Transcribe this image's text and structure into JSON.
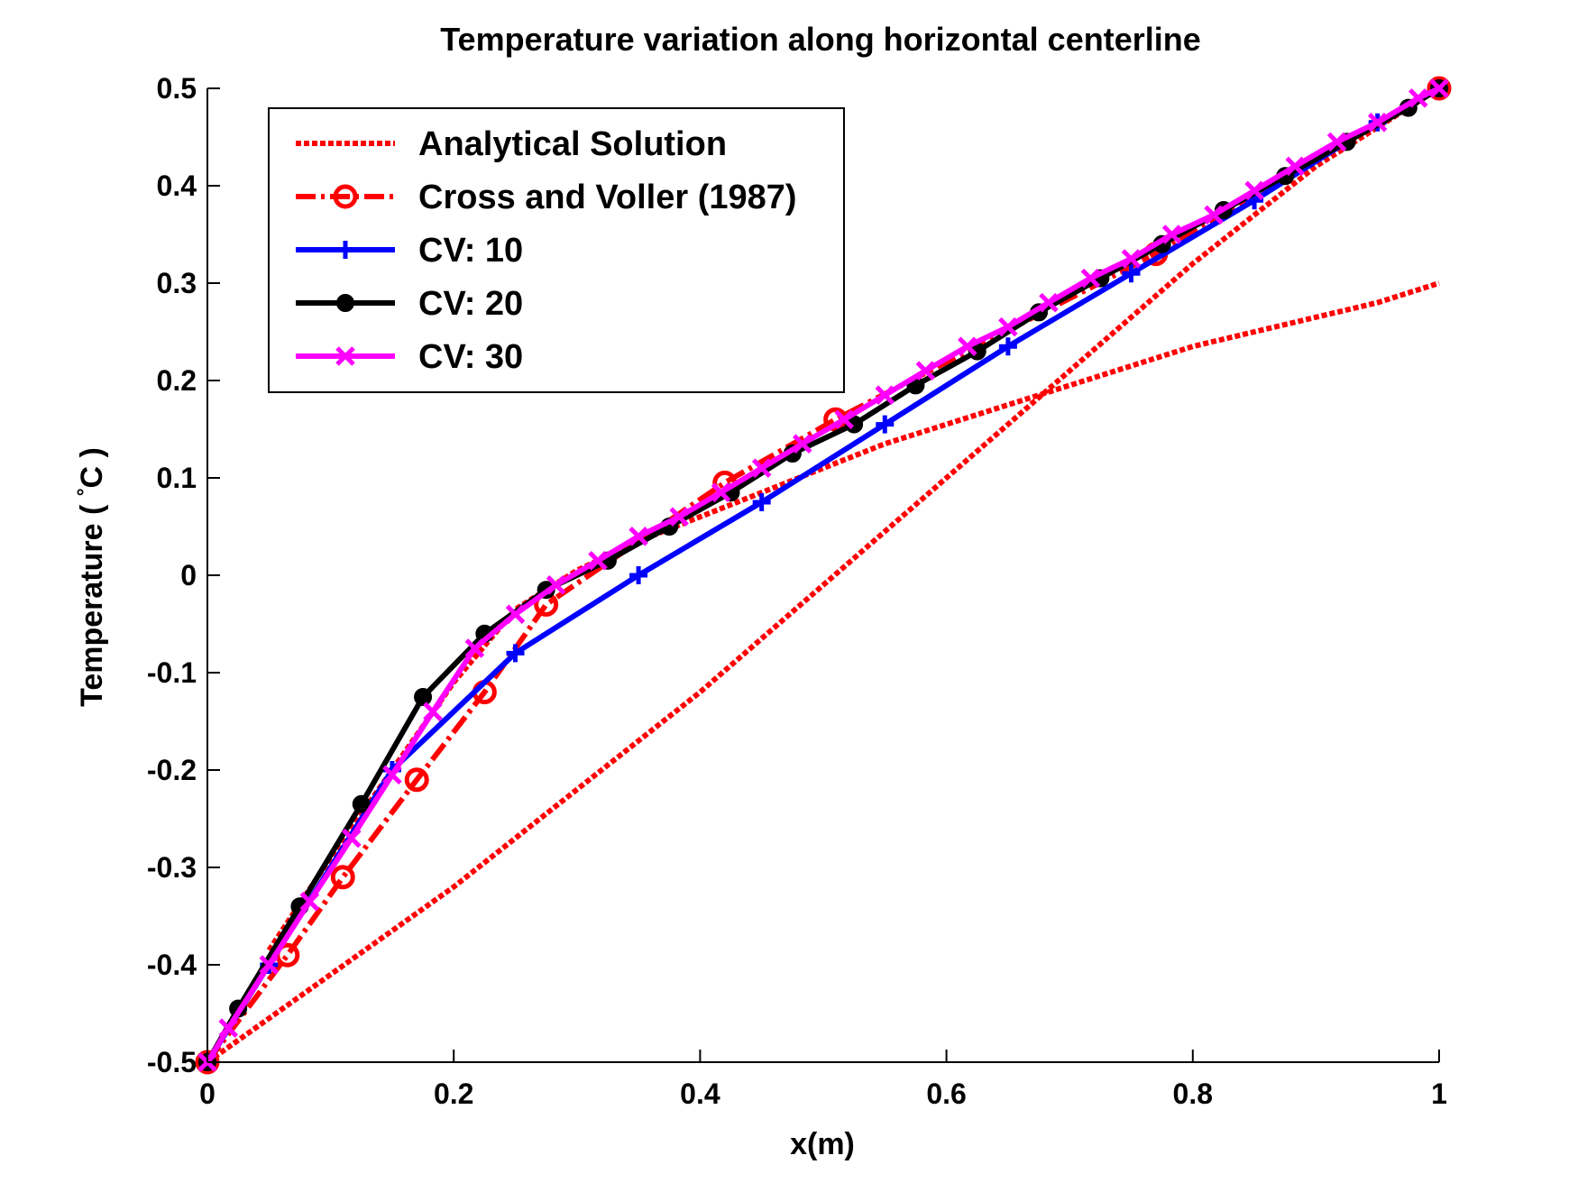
{
  "chart_data": {
    "type": "line",
    "title": "Temperature variation along horizontal centerline",
    "xlabel": "x(m)",
    "ylabel_main": "Temperature ( ",
    "ylabel_degree": "°",
    "ylabel_unit": "C )",
    "xlim": [
      0,
      1
    ],
    "ylim": [
      -0.5,
      0.5
    ],
    "xticks": [
      0,
      0.2,
      0.4,
      0.6,
      0.8,
      1
    ],
    "xtick_labels": [
      "0",
      "0.2",
      "0.4",
      "0.6",
      "0.8",
      "1"
    ],
    "yticks": [
      -0.5,
      -0.4,
      -0.3,
      -0.2,
      -0.1,
      0,
      0.1,
      0.2,
      0.3,
      0.4,
      0.5
    ],
    "ytick_labels": [
      "-0.5",
      "-0.4",
      "-0.3",
      "-0.2",
      "-0.1",
      "0",
      "0.1",
      "0.2",
      "0.3",
      "0.4",
      "0.5"
    ],
    "grid": false,
    "legend_position": "top-left",
    "series": [
      {
        "name": "Analytical Solution",
        "color": "#ff0000",
        "style": "dotted",
        "marker": "none",
        "x": [
          0.05,
          0.1,
          0.15,
          0.2,
          0.25,
          0.3,
          0.35,
          0.4,
          0.45,
          0.5,
          0.55,
          0.6,
          0.65,
          0.7,
          0.75,
          0.8,
          0.85,
          0.9,
          0.95,
          1.0
        ],
        "y": [
          -0.385,
          -0.29,
          -0.2,
          -0.11,
          -0.035,
          0.005,
          0.035,
          0.06,
          0.085,
          0.11,
          0.135,
          0.155,
          0.175,
          0.195,
          0.215,
          0.235,
          0.25,
          0.265,
          0.28,
          0.3
        ]
      },
      {
        "name": "Analytical Solution",
        "legend": false,
        "color": "#ff0000",
        "style": "dotted",
        "marker": "none",
        "x": [
          0,
          0.1,
          0.2,
          0.3,
          0.4,
          0.5,
          0.6,
          0.7,
          0.8,
          0.9,
          1.0
        ],
        "y": [
          -0.5,
          -0.41,
          -0.32,
          -0.22,
          -0.12,
          -0.01,
          0.1,
          0.21,
          0.32,
          0.42,
          0.5
        ]
      },
      {
        "name": "Cross and Voller (1987)",
        "color": "#ff0000",
        "style": "dashdot",
        "marker": "circle",
        "x": [
          0,
          0.065,
          0.11,
          0.17,
          0.225,
          0.275,
          0.42,
          0.51,
          0.77,
          1.0
        ],
        "y": [
          -0.5,
          -0.39,
          -0.31,
          -0.21,
          -0.12,
          -0.03,
          0.095,
          0.16,
          0.33,
          0.5
        ]
      },
      {
        "name": "CV: 10",
        "color": "#0000ff",
        "style": "solid",
        "marker": "plus",
        "x": [
          0,
          0.05,
          0.15,
          0.25,
          0.35,
          0.45,
          0.55,
          0.65,
          0.75,
          0.85,
          0.95,
          1.0
        ],
        "y": [
          -0.5,
          -0.4,
          -0.2,
          -0.08,
          0.0,
          0.075,
          0.155,
          0.235,
          0.31,
          0.385,
          0.465,
          0.5
        ]
      },
      {
        "name": "CV: 20",
        "color": "#000000",
        "style": "solid",
        "marker": "dot",
        "x": [
          0,
          0.025,
          0.075,
          0.125,
          0.175,
          0.225,
          0.275,
          0.325,
          0.375,
          0.425,
          0.475,
          0.525,
          0.575,
          0.625,
          0.675,
          0.725,
          0.775,
          0.825,
          0.875,
          0.925,
          0.975,
          1.0
        ],
        "y": [
          -0.5,
          -0.445,
          -0.34,
          -0.235,
          -0.125,
          -0.06,
          -0.015,
          0.015,
          0.05,
          0.085,
          0.125,
          0.155,
          0.195,
          0.23,
          0.27,
          0.305,
          0.34,
          0.375,
          0.41,
          0.445,
          0.48,
          0.5
        ]
      },
      {
        "name": "CV: 30",
        "color": "#ff00ff",
        "style": "solid",
        "marker": "x",
        "x": [
          0,
          0.017,
          0.05,
          0.083,
          0.117,
          0.15,
          0.183,
          0.217,
          0.25,
          0.283,
          0.317,
          0.35,
          0.383,
          0.417,
          0.45,
          0.483,
          0.517,
          0.55,
          0.583,
          0.617,
          0.65,
          0.683,
          0.717,
          0.75,
          0.783,
          0.817,
          0.85,
          0.883,
          0.917,
          0.95,
          0.983,
          1.0
        ],
        "y": [
          -0.5,
          -0.465,
          -0.4,
          -0.335,
          -0.27,
          -0.205,
          -0.14,
          -0.075,
          -0.04,
          -0.01,
          0.015,
          0.04,
          0.06,
          0.085,
          0.11,
          0.135,
          0.16,
          0.185,
          0.21,
          0.235,
          0.255,
          0.28,
          0.305,
          0.325,
          0.35,
          0.37,
          0.395,
          0.42,
          0.445,
          0.465,
          0.49,
          0.5
        ]
      }
    ]
  }
}
